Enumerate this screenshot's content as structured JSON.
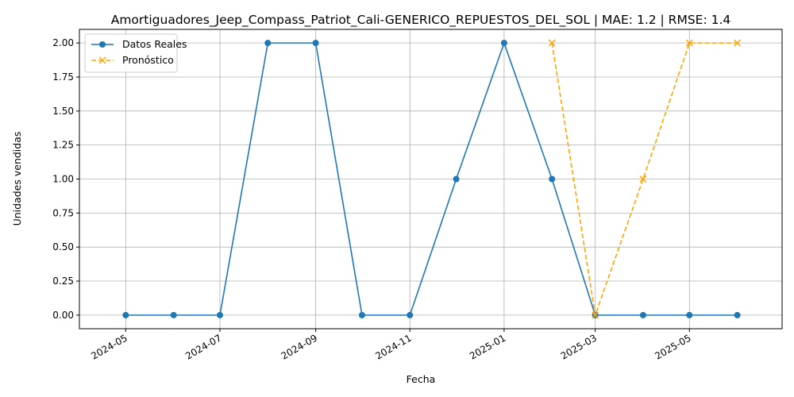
{
  "chart_data": {
    "type": "line",
    "title": "Amortiguadores_Jeep_Compass_Patriot_Cali-GENERICO_REPUESTOS_DEL_SOL | MAE: 1.2 | RMSE: 1.4",
    "xlabel": "Fecha",
    "ylabel": "Unidades vendidas",
    "ylim": [
      -0.1,
      2.1
    ],
    "xlim": [
      "2024-04-01",
      "2025-06-30"
    ],
    "grid": true,
    "legend_position": "top-left",
    "x_ticks": [
      "2024-05",
      "2024-07",
      "2024-09",
      "2024-11",
      "2025-01",
      "2025-03",
      "2025-05"
    ],
    "y_ticks": [
      "0.00",
      "0.25",
      "0.50",
      "0.75",
      "1.00",
      "1.25",
      "1.50",
      "1.75",
      "2.00"
    ],
    "series": [
      {
        "name": "Datos Reales",
        "color": "#1f77b4",
        "style": "solid",
        "marker": "circle",
        "x": [
          "2024-05-01",
          "2024-06-01",
          "2024-07-01",
          "2024-08-01",
          "2024-09-01",
          "2024-10-01",
          "2024-11-01",
          "2024-12-01",
          "2025-01-01",
          "2025-02-01",
          "2025-03-01",
          "2025-04-01",
          "2025-05-01",
          "2025-06-01"
        ],
        "values": [
          0,
          0,
          0,
          2,
          2,
          0,
          0,
          1,
          2,
          1,
          0,
          0,
          0,
          0
        ]
      },
      {
        "name": "Pronóstico",
        "color": "#ffa500",
        "style": "dashed",
        "marker": "x",
        "x": [
          "2025-02-01",
          "2025-03-01",
          "2025-04-01",
          "2025-05-01",
          "2025-06-01"
        ],
        "values": [
          2,
          0,
          1,
          2,
          2
        ]
      }
    ]
  }
}
